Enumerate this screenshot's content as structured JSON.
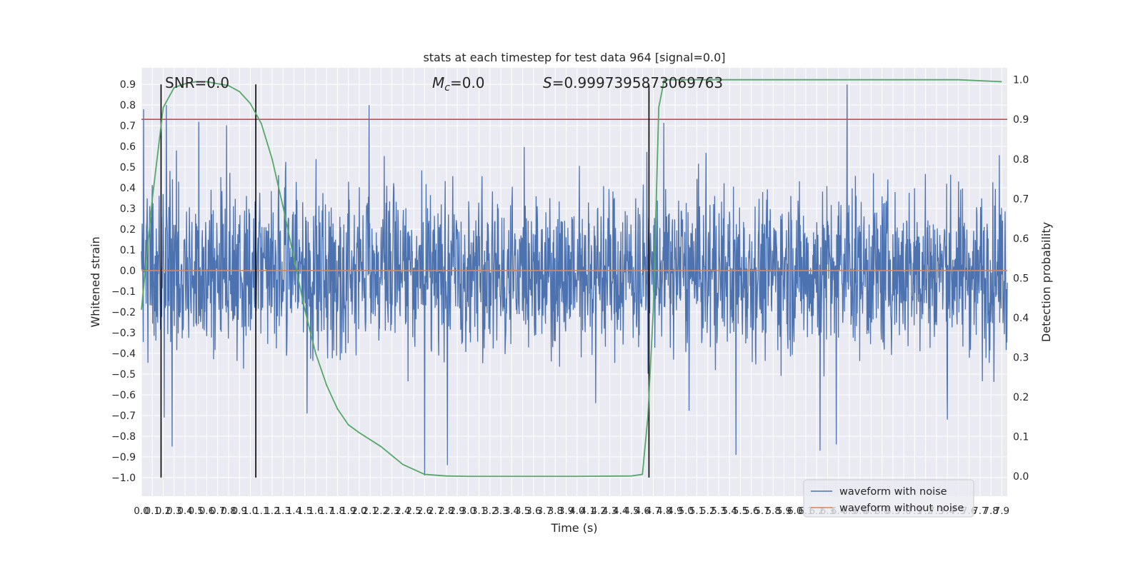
{
  "chart_data": {
    "type": "line",
    "title": "stats at each timestep for test data 964 [signal=0.0]",
    "xlabel": "Time (s)",
    "ylabel": "Whitened strain",
    "ylabel_right": "Detection probability",
    "xlim": [
      0.0,
      7.95
    ],
    "ylim": [
      -1.09,
      0.98
    ],
    "ylim_right": [
      -0.05,
      1.03
    ],
    "xticks": [
      0.0,
      0.1,
      0.2,
      0.3,
      0.4,
      0.5,
      0.6,
      0.7,
      0.8,
      0.9,
      1.0,
      1.1,
      1.2,
      1.3,
      1.4,
      1.5,
      1.6,
      1.7,
      1.8,
      1.9,
      2.0,
      2.1,
      2.2,
      2.3,
      2.4,
      2.5,
      2.6,
      2.7,
      2.8,
      2.9,
      3.0,
      3.1,
      3.2,
      3.3,
      3.4,
      3.5,
      3.6,
      3.7,
      3.8,
      3.9,
      4.0,
      4.1,
      4.2,
      4.3,
      4.4,
      4.5,
      4.6,
      4.7,
      4.8,
      4.9,
      5.0,
      5.1,
      5.2,
      5.3,
      5.4,
      5.5,
      5.6,
      5.7,
      5.8,
      5.9,
      6.0,
      6.1,
      6.2,
      6.3,
      6.4,
      6.5,
      6.6,
      6.7,
      6.8,
      6.9,
      7.0,
      7.1,
      7.2,
      7.3,
      7.4,
      7.5,
      7.6,
      7.7,
      7.8,
      7.9
    ],
    "yticks": [
      -1.0,
      -0.9,
      -0.8,
      -0.7,
      -0.6,
      -0.5,
      -0.4,
      -0.3,
      -0.2,
      -0.1,
      0.0,
      0.1,
      0.2,
      0.3,
      0.4,
      0.5,
      0.6,
      0.7,
      0.8,
      0.9
    ],
    "yticks_right": [
      0.0,
      0.1,
      0.2,
      0.3,
      0.4,
      0.5,
      0.6,
      0.7,
      0.8,
      0.9,
      1.0
    ],
    "grid": true,
    "legend_position": "lower-right",
    "annotations": {
      "snr": "SNR=0.0",
      "mc": "M_c=0.0",
      "s": "S=0.9997395873069763"
    },
    "threshold": {
      "axis": "right",
      "value": 0.9,
      "color": "#c44e52"
    },
    "vertical_lines": [
      0.18,
      1.05,
      4.66
    ],
    "series": [
      {
        "name": "waveform with noise",
        "axis": "left",
        "color": "#4c72b0",
        "kind": "noise",
        "duration_s": 7.95,
        "amplitude_note": "dense noise, roughly within ±0.45 with spikes up to 0.9 and down to -0.99",
        "spikes": [
          [
            0.02,
            0.78
          ],
          [
            0.23,
            0.8
          ],
          [
            0.28,
            -0.85
          ],
          [
            0.21,
            -0.71
          ],
          [
            2.09,
            0.8
          ],
          [
            2.6,
            -0.99
          ],
          [
            2.81,
            -0.94
          ],
          [
            1.52,
            -0.69
          ],
          [
            4.17,
            -0.64
          ],
          [
            5.46,
            -0.89
          ],
          [
            6.48,
            0.9
          ],
          [
            6.23,
            -0.87
          ],
          [
            6.38,
            -0.84
          ],
          [
            7.4,
            -0.72
          ]
        ]
      },
      {
        "name": "waveform without noise",
        "axis": "left",
        "color": "#dd8452",
        "x": [
          0.0,
          7.95
        ],
        "y": [
          0.0,
          0.0
        ]
      },
      {
        "name": "Detection probability",
        "axis": "right",
        "color": "#55a868",
        "x": [
          0.0,
          0.1,
          0.2,
          0.3,
          0.4,
          0.5,
          0.6,
          0.7,
          0.8,
          0.9,
          1.0,
          1.1,
          1.2,
          1.3,
          1.4,
          1.5,
          1.6,
          1.7,
          1.8,
          1.9,
          2.0,
          2.2,
          2.4,
          2.6,
          2.8,
          3.0,
          3.5,
          4.0,
          4.5,
          4.6,
          4.65,
          4.7,
          4.75,
          4.8,
          5.0,
          6.0,
          7.0,
          7.5,
          7.9
        ],
        "y": [
          0.42,
          0.7,
          0.93,
          0.98,
          0.99,
          0.995,
          0.995,
          0.99,
          0.985,
          0.97,
          0.94,
          0.89,
          0.8,
          0.68,
          0.55,
          0.42,
          0.31,
          0.23,
          0.17,
          0.13,
          0.11,
          0.075,
          0.03,
          0.005,
          0.001,
          0.0,
          0.0,
          0.0,
          0.001,
          0.005,
          0.15,
          0.42,
          0.93,
          1.0,
          1.0,
          1.0,
          1.0,
          1.0,
          0.995
        ]
      }
    ]
  }
}
